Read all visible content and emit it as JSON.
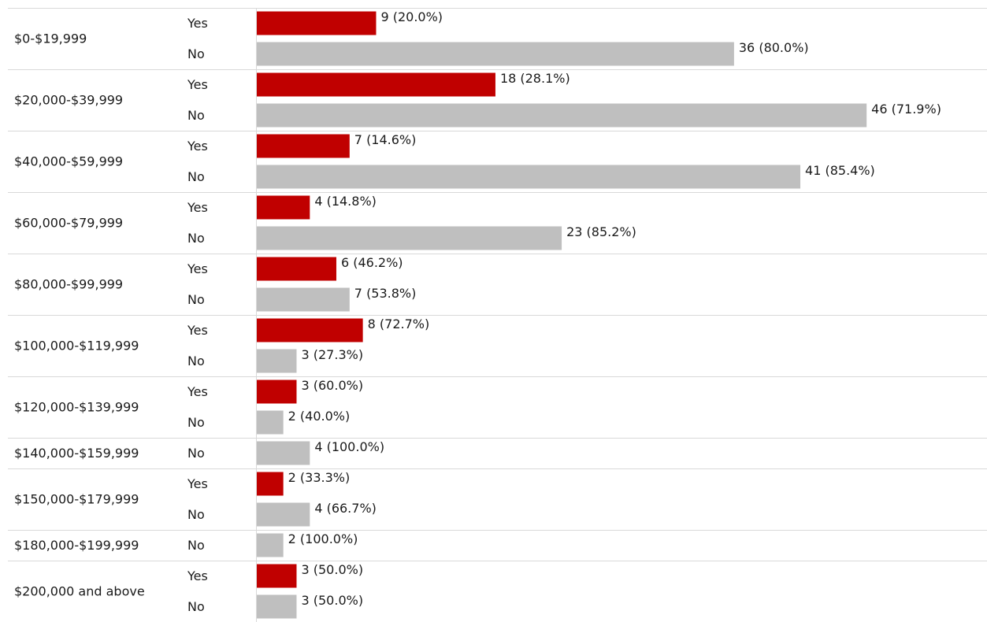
{
  "chart_data": {
    "type": "bar",
    "orientation": "horizontal",
    "title": "",
    "xlabel": "",
    "ylabel": "",
    "grid": false,
    "legend": "none",
    "colors": {
      "Yes": "#c00000",
      "No": "#bfbfbf"
    },
    "categories": [
      "$0-$19,999",
      "$20,000-$39,999",
      "$40,000-$59,999",
      "$60,000-$79,999",
      "$80,000-$99,999",
      "$100,000-$119,999",
      "$120,000-$139,999",
      "$140,000-$159,999",
      "$150,000-$179,999",
      "$180,000-$199,999",
      "$200,000 and above"
    ],
    "groups": [
      {
        "category": "$0-$19,999",
        "bars": [
          {
            "response": "Yes",
            "value": 9,
            "label": "9 (20.0%)"
          },
          {
            "response": "No",
            "value": 36,
            "label": "36 (80.0%)"
          }
        ]
      },
      {
        "category": "$20,000-$39,999",
        "bars": [
          {
            "response": "Yes",
            "value": 18,
            "label": "18 (28.1%)"
          },
          {
            "response": "No",
            "value": 46,
            "label": "46 (71.9%)"
          }
        ]
      },
      {
        "category": "$40,000-$59,999",
        "bars": [
          {
            "response": "Yes",
            "value": 7,
            "label": "7 (14.6%)"
          },
          {
            "response": "No",
            "value": 41,
            "label": "41 (85.4%)"
          }
        ]
      },
      {
        "category": "$60,000-$79,999",
        "bars": [
          {
            "response": "Yes",
            "value": 4,
            "label": "4 (14.8%)"
          },
          {
            "response": "No",
            "value": 23,
            "label": "23 (85.2%)"
          }
        ]
      },
      {
        "category": "$80,000-$99,999",
        "bars": [
          {
            "response": "Yes",
            "value": 6,
            "label": "6 (46.2%)"
          },
          {
            "response": "No",
            "value": 7,
            "label": "7 (53.8%)"
          }
        ]
      },
      {
        "category": "$100,000-$119,999",
        "bars": [
          {
            "response": "Yes",
            "value": 8,
            "label": "8 (72.7%)"
          },
          {
            "response": "No",
            "value": 3,
            "label": "3 (27.3%)"
          }
        ]
      },
      {
        "category": "$120,000-$139,999",
        "bars": [
          {
            "response": "Yes",
            "value": 3,
            "label": "3 (60.0%)"
          },
          {
            "response": "No",
            "value": 2,
            "label": "2 (40.0%)"
          }
        ]
      },
      {
        "category": "$140,000-$159,999",
        "bars": [
          {
            "response": "No",
            "value": 4,
            "label": "4 (100.0%)"
          }
        ]
      },
      {
        "category": "$150,000-$179,999",
        "bars": [
          {
            "response": "Yes",
            "value": 2,
            "label": "2 (33.3%)"
          },
          {
            "response": "No",
            "value": 4,
            "label": "4 (66.7%)"
          }
        ]
      },
      {
        "category": "$180,000-$199,999",
        "bars": [
          {
            "response": "No",
            "value": 2,
            "label": "2 (100.0%)"
          }
        ]
      },
      {
        "category": "$200,000 and above",
        "bars": [
          {
            "response": "Yes",
            "value": 3,
            "label": "3 (50.0%)"
          },
          {
            "response": "No",
            "value": 3,
            "label": "3 (50.0%)"
          }
        ]
      }
    ]
  }
}
